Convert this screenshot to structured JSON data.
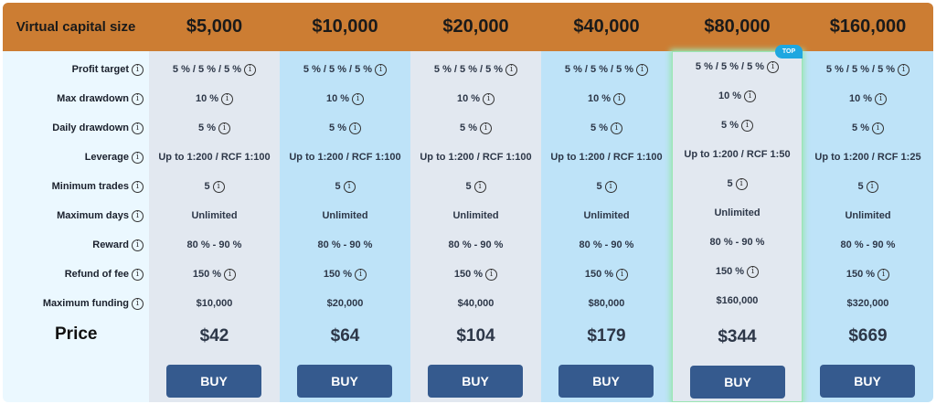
{
  "header": {
    "label": "Virtual capital size"
  },
  "row_labels": [
    {
      "text": "Profit target",
      "info": true
    },
    {
      "text": "Max drawdown",
      "info": true
    },
    {
      "text": "Daily drawdown",
      "info": true
    },
    {
      "text": "Leverage",
      "info": true
    },
    {
      "text": "Minimum trades",
      "info": true
    },
    {
      "text": "Maximum days",
      "info": true
    },
    {
      "text": "Reward",
      "info": true
    },
    {
      "text": "Refund of fee",
      "info": true
    },
    {
      "text": "Maximum funding",
      "info": true
    }
  ],
  "price_label": "Price",
  "info_flags": [
    true,
    true,
    true,
    false,
    true,
    false,
    false,
    true,
    false
  ],
  "badge": "TOP",
  "colors": {
    "header": "#CC7D33",
    "button": "#355A8E",
    "badge": "#1FA7E0",
    "highlight": "#9ae6b4"
  },
  "plans": [
    {
      "size": "$5,000",
      "values": [
        "5 % / 5 % / 5 %",
        "10 %",
        "5 %",
        "Up to 1:200 / RCF 1:100",
        "5",
        "Unlimited",
        "80 % - 90 %",
        "150 %",
        "$10,000"
      ],
      "price": "$42",
      "buy": "BUY"
    },
    {
      "size": "$10,000",
      "values": [
        "5 % / 5 % / 5 %",
        "10 %",
        "5 %",
        "Up to 1:200 / RCF 1:100",
        "5",
        "Unlimited",
        "80 % - 90 %",
        "150 %",
        "$20,000"
      ],
      "price": "$64",
      "buy": "BUY"
    },
    {
      "size": "$20,000",
      "values": [
        "5 % / 5 % / 5 %",
        "10 %",
        "5 %",
        "Up to 1:200 / RCF 1:100",
        "5",
        "Unlimited",
        "80 % - 90 %",
        "150 %",
        "$40,000"
      ],
      "price": "$104",
      "buy": "BUY"
    },
    {
      "size": "$40,000",
      "values": [
        "5 % / 5 % / 5 %",
        "10 %",
        "5 %",
        "Up to 1:200 / RCF 1:100",
        "5",
        "Unlimited",
        "80 % - 90 %",
        "150 %",
        "$80,000"
      ],
      "price": "$179",
      "buy": "BUY"
    },
    {
      "size": "$80,000",
      "values": [
        "5 % / 5 % / 5 %",
        "10 %",
        "5 %",
        "Up to 1:200 / RCF 1:50",
        "5",
        "Unlimited",
        "80 % - 90 %",
        "150 %",
        "$160,000"
      ],
      "price": "$344",
      "buy": "BUY",
      "top": true
    },
    {
      "size": "$160,000",
      "values": [
        "5 % / 5 % / 5 %",
        "10 %",
        "5 %",
        "Up to 1:200 / RCF 1:25",
        "5",
        "Unlimited",
        "80 % - 90 %",
        "150 %",
        "$320,000"
      ],
      "price": "$669",
      "buy": "BUY"
    }
  ]
}
